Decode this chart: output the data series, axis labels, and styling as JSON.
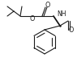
{
  "bg": "#ffffff",
  "lc": "#1a1a1a",
  "lw": 0.8,
  "figsize": [
    0.95,
    0.97
  ],
  "dpi": 100,
  "xlim": [
    0,
    95
  ],
  "ylim": [
    0,
    97
  ]
}
